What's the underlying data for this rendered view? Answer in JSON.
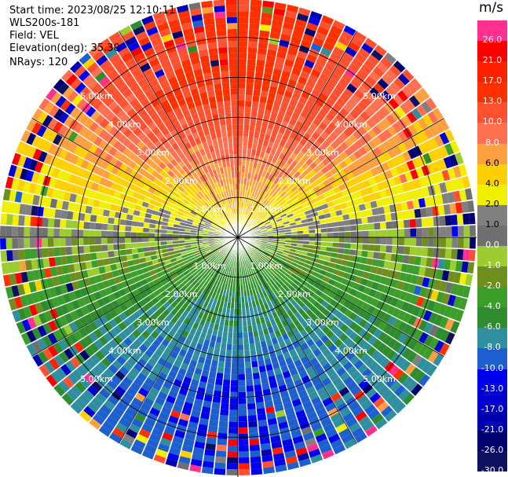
{
  "meta": {
    "start_time": "Start time: 2023/08/25 12:10:11",
    "instrument": "WLS200s-181",
    "field": "Field: VEL",
    "elevation": "Elevation(deg): 35.30",
    "nrays": "NRays: 120"
  },
  "chart_data": {
    "type": "heatmap",
    "projection": "polar-ppi",
    "field": "VEL",
    "units": "m/s",
    "n_rays": 120,
    "range_rings_km": [
      1,
      2,
      3,
      4,
      5
    ],
    "ring_labels": [
      "1.00km",
      "2.00km",
      "3.00km",
      "4.00km",
      "5.00km"
    ],
    "max_range_km": 5.95,
    "colorbar": {
      "title": "m/s",
      "boundaries": [
        -30,
        -26,
        -21,
        -17,
        -13,
        -10,
        -8,
        -6,
        -4,
        -2,
        -1,
        0,
        1,
        2,
        4,
        6,
        8,
        10,
        13,
        17,
        21,
        26,
        30
      ],
      "colors": [
        "#101060",
        "#000070",
        "#0000b0",
        "#0000d0",
        "#0000f0",
        "#1e5fd0",
        "#2f8f9f",
        "#2e8b2e",
        "#3c9e2a",
        "#6e8f1e",
        "#9ccc30",
        "#707070",
        "#808080",
        "#f0f000",
        "#ffd000",
        "#ffa040",
        "#ff7050",
        "#ff5030",
        "#ff3000",
        "#ff2000",
        "#ff0000",
        "#ff3090"
      ],
      "tick_labels": [
        "26.0",
        "21.0",
        "17.0",
        "13.0",
        "10.0",
        "8.0",
        "6.0",
        "4.0",
        "2.0",
        "1.0",
        "0.0",
        "-1.0",
        "-2.0",
        "-4.0",
        "-6.0",
        "-8.0",
        "-10.0",
        "-13.0",
        "-17.0",
        "-21.0",
        "-26.0",
        "-30.0"
      ]
    },
    "velocity_pattern": {
      "description_free": true,
      "north_sector_mps": 14,
      "south_sector_mps": -10,
      "east_west_mps": 0
    }
  }
}
